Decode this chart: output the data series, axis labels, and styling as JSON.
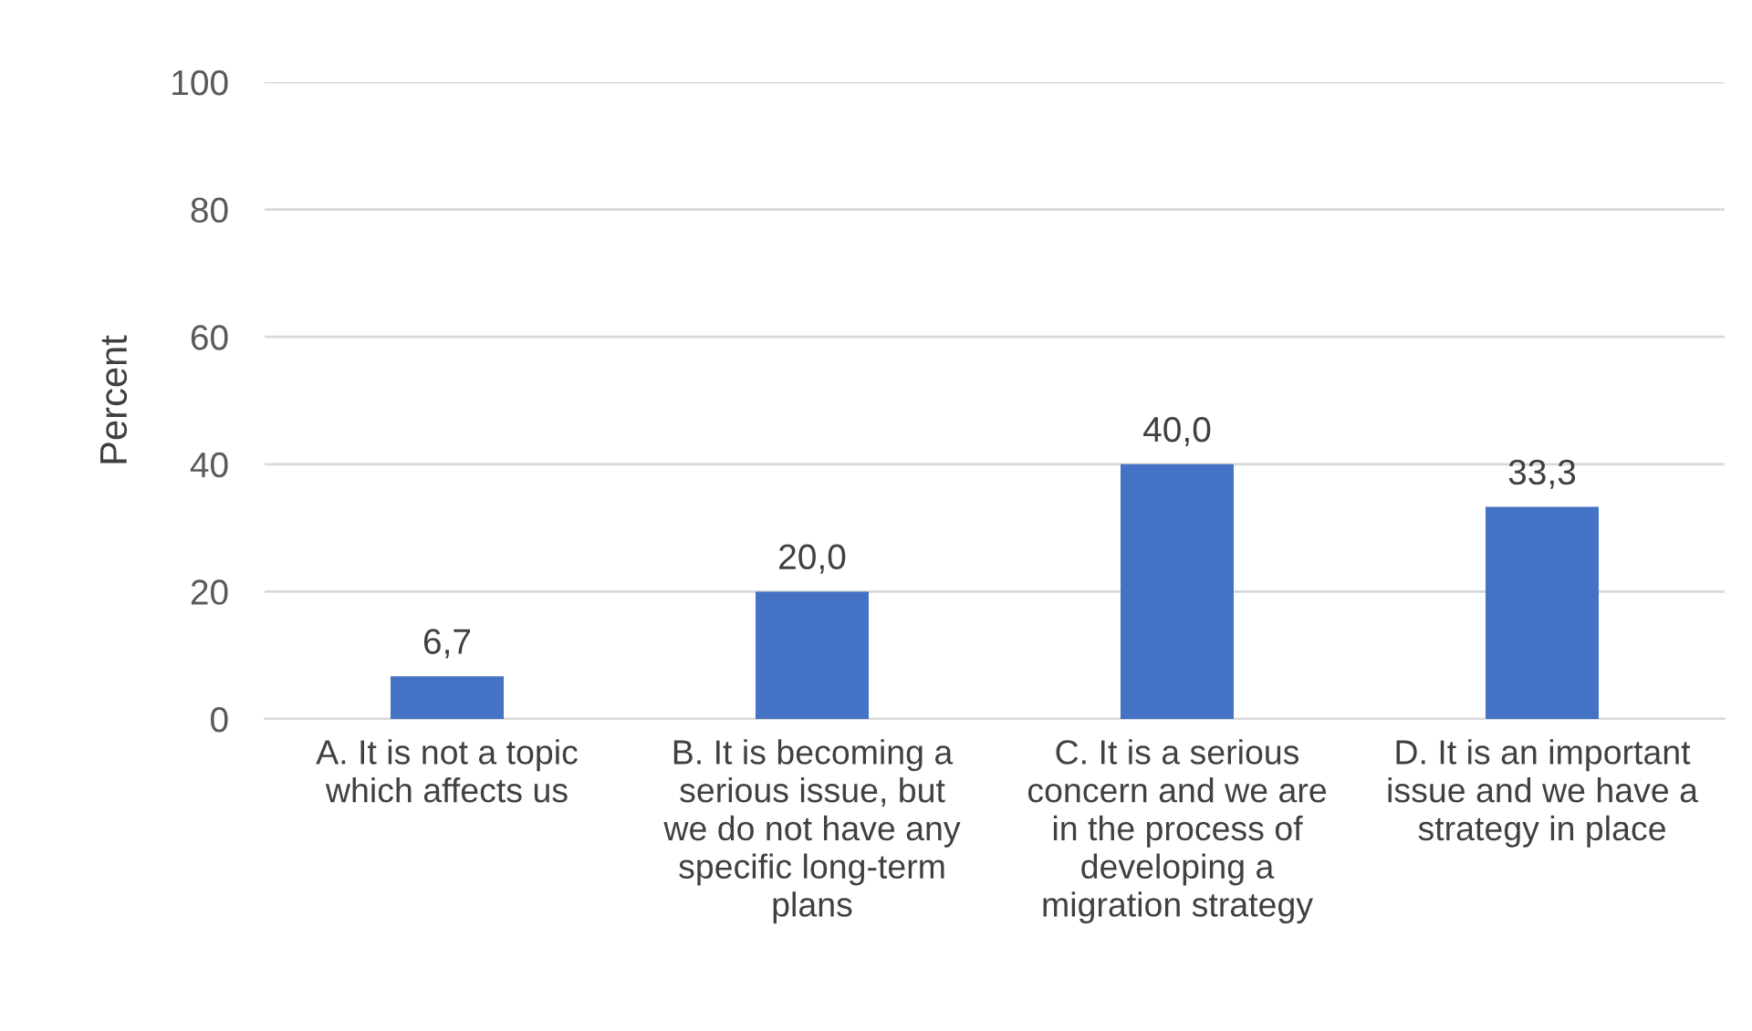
{
  "chart_data": {
    "type": "bar",
    "ylabel": "Percent",
    "categories": [
      "A. It is not a topic\nwhich affects us",
      "B. It is becoming a\nserious issue, but\nwe do not have any\nspecific long-term\nplans",
      "C. It is a serious\nconcern and we are\nin the process of\ndeveloping a\nmigration strategy",
      "D. It is an important\nissue and we have a\nstrategy in place"
    ],
    "values": [
      6.7,
      20.0,
      40.0,
      33.3
    ],
    "value_labels": [
      "6,7",
      "20,0",
      "40,0",
      "33,3"
    ],
    "color": "#4472c4",
    "ylim": [
      0,
      100
    ],
    "yticks": [
      0,
      20,
      40,
      60,
      80,
      100
    ],
    "grid": "y"
  }
}
